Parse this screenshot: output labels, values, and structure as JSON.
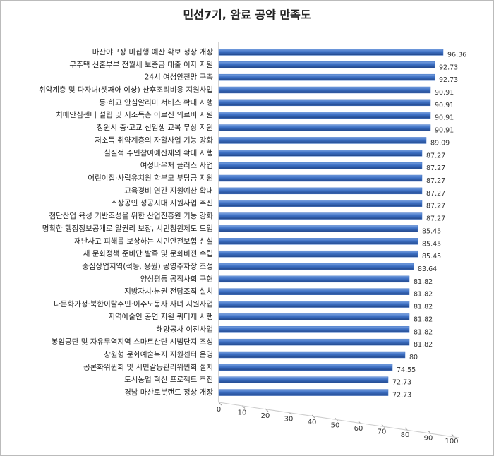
{
  "chart_data": {
    "type": "bar",
    "orientation": "horizontal",
    "title": "민선7기, 완료 공약 만족도",
    "categories": [
      "마산야구장 미집행 예산 확보 정상 개장",
      "무주택 신혼부부 전월세 보증금 대출 이자 지원",
      "24시 여성안전망 구축",
      "취약계층 및 다자녀(셋째아 이상) 산후조리비용 지원사업",
      "등·하교 안심알리미 서비스 확대 시행",
      "치매안심센터 설립 및 저소득층 어르신 의료비 지원",
      "창원시 중·고교 신입생 교복 무상 지원",
      "저소득 취약계층의 자활사업 기능 강화",
      "실질적 주민참여예산제의 확대 시행",
      "여성바우처 플러스 사업",
      "어린이집·사립유치원 학부모 부담금 지원",
      "교육경비 연간 지원예산 확대",
      "소상공인 성공시대 지원사업 추진",
      "첨단산업 육성 기반조성을 위한 산업진흥원 기능 강화",
      "명확한 행정정보공개로 알권리 보장, 시민청원제도 도입",
      "재난사고 피해를 보상하는 시민안전보험 신설",
      "새 문화정책 준비단 발족 및 문화비전 수립",
      "중심상업지역(석동, 용원) 공영주차장 조성",
      "양성평등 공직사회 구현",
      "지방자치·분권 전담조직 설치",
      "다문화가정·북한이탈주민·이주노동자 자녀 지원사업",
      "지역예술인 공연 지원 쿼터제 시행",
      "해양공사 이전사업",
      "봉암공단 및 자유무역지역 스마트산단 시범단지 조성",
      "창원형 문화예술복지 지원센터 운영",
      "공론화위원회 및 시민갈등관리위원회 설치",
      "도시농업 혁신 프로젝트 추진",
      "경남 마산로봇랜드 정상 개장"
    ],
    "values": [
      96.36,
      92.73,
      92.73,
      90.91,
      90.91,
      90.91,
      90.91,
      89.09,
      87.27,
      87.27,
      87.27,
      87.27,
      87.27,
      87.27,
      85.45,
      85.45,
      85.45,
      83.64,
      81.82,
      81.82,
      81.82,
      81.82,
      81.82,
      81.82,
      80,
      74.55,
      72.73,
      72.73
    ],
    "color": "#3d70c4",
    "xlim": [
      0,
      100
    ],
    "xticks": [
      0,
      10,
      20,
      30,
      40,
      50,
      60,
      70,
      80,
      90,
      100
    ]
  }
}
